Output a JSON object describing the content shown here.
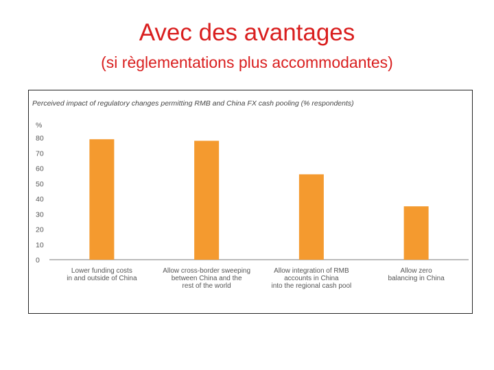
{
  "slide": {
    "title": "Avec des avantages",
    "subtitle": "(si règlementations plus accommodantes)"
  },
  "colors": {
    "title": "#d91e1e",
    "bar": "#f49a2f",
    "axis_text": "#555555"
  },
  "chart_data": {
    "type": "bar",
    "title": "Perceived impact of regulatory changes permitting RMB and China FX cash pooling (% respondents)",
    "ylabel": "%",
    "ylim": [
      0,
      80
    ],
    "yticks": [
      0,
      10,
      20,
      30,
      40,
      50,
      60,
      70,
      80
    ],
    "grid": false,
    "categories": [
      [
        "Lower funding costs",
        "in and outside of China"
      ],
      [
        "Allow cross-border sweeping",
        "between China and the",
        "rest of the world"
      ],
      [
        "Allow integration of RMB",
        "accounts in China",
        "into the regional cash pool"
      ],
      [
        "Allow zero",
        "balancing in China"
      ]
    ],
    "values": [
      79,
      78,
      56,
      35
    ]
  }
}
